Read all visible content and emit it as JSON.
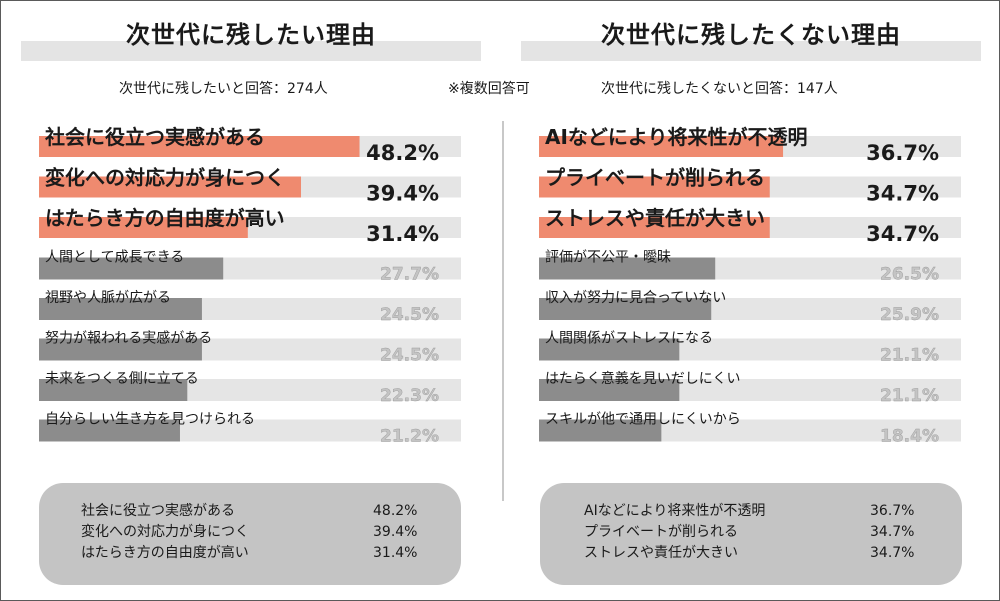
{
  "left_panel": {
    "title": "次世代に残したい理由",
    "respondents": "次世代に残したいと回答：274人"
  },
  "note": "※複数回答可",
  "right_panel": {
    "title": "次世代に残したくない理由",
    "respondents": "次世代に残したくないと回答：147人"
  },
  "colors": {
    "highlight_bar": "#ef8a6f",
    "normal_bar": "#8c8c8c",
    "track": "#e5e5e5",
    "highlight_value": "#1a1a1a",
    "normal_value": "#c4c4c4",
    "summary_box": "#c4c4c4"
  },
  "chart_data": [
    {
      "type": "bar",
      "orientation": "horizontal",
      "title": "次世代に残したい理由",
      "unit": "%",
      "xlim": [
        0,
        100
      ],
      "categories": [
        "社会に役立つ実感がある",
        "変化への対応力が身につく",
        "はたらき方の自由度が高い",
        "人間として成長できる",
        "視野や人脈が広がる",
        "努力が報われる実感がある",
        "未来をつくる側に立てる",
        "自分らしい生き方を見つけられる"
      ],
      "values": [
        48.2,
        39.4,
        31.4,
        27.7,
        24.5,
        24.5,
        22.3,
        21.2
      ],
      "value_labels": [
        "48.2%",
        "39.4%",
        "31.4%",
        "27.7%",
        "24.5%",
        "24.5%",
        "22.3%",
        "21.2%"
      ],
      "highlighted_top": 3
    },
    {
      "type": "bar",
      "orientation": "horizontal",
      "title": "次世代に残したくない理由",
      "unit": "%",
      "xlim": [
        0,
        100
      ],
      "categories": [
        "AIなどにより将来性が不透明",
        "プライベートが削られる",
        "ストレスや責任が大きい",
        "評価が不公平・曖昧",
        "収入が努力に見合っていない",
        "人間関係がストレスになる",
        "はたらく意義を見いだしにくい",
        "スキルが他で通用しにくいから"
      ],
      "values": [
        36.7,
        34.7,
        34.7,
        26.5,
        25.9,
        21.1,
        21.1,
        18.4
      ],
      "value_labels": [
        "36.7%",
        "34.7%",
        "34.7%",
        "26.5%",
        "25.9%",
        "21.1%",
        "21.1%",
        "18.4%"
      ],
      "highlighted_top": 3
    }
  ],
  "left_summary": [
    {
      "label": "社会に役立つ実感がある",
      "value": "48.2%"
    },
    {
      "label": "変化への対応力が身につく",
      "value": "39.4%"
    },
    {
      "label": "はたらき方の自由度が高い",
      "value": "31.4%"
    }
  ],
  "right_summary": [
    {
      "label": "AIなどにより将来性が不透明",
      "value": "36.7%"
    },
    {
      "label": "プライベートが削られる",
      "value": "34.7%"
    },
    {
      "label": "ストレスや責任が大きい",
      "value": "34.7%"
    }
  ]
}
